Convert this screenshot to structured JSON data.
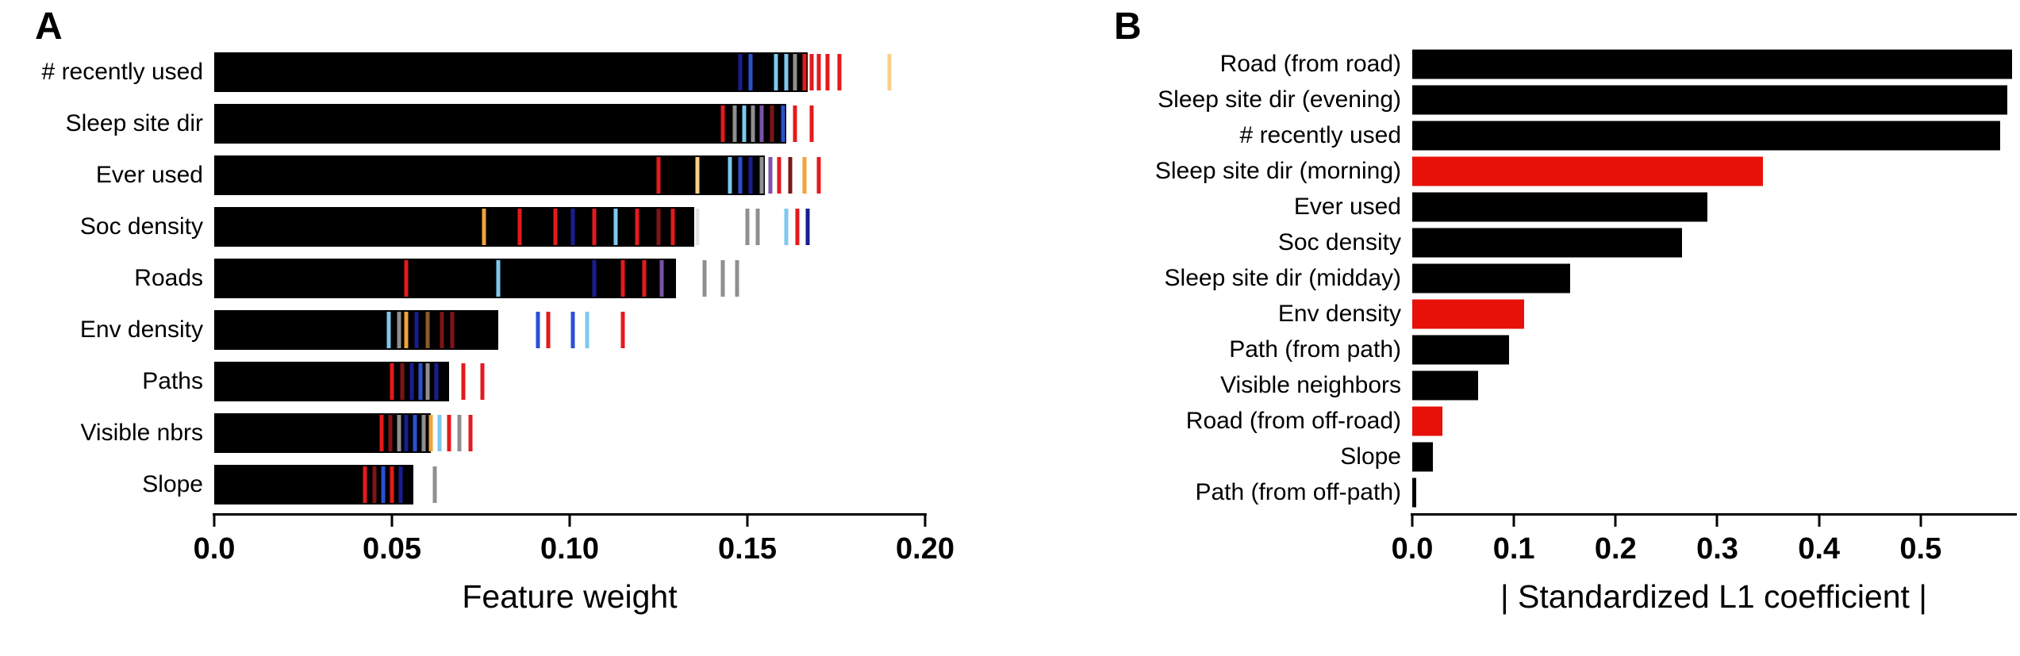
{
  "figure": {
    "background": "#ffffff"
  },
  "palette": {
    "red": "#e41a1c",
    "darkred": "#7e1416",
    "navy": "#191d8f",
    "blue": "#2b50d0",
    "lightblue": "#7ec8ee",
    "orange": "#f2a33c",
    "lightorange": "#f9d08b",
    "gray": "#8f8f8f",
    "purple": "#7a52a8",
    "brown": "#8a5a2a",
    "white": "#e3e3e3"
  },
  "chart_data": [
    {
      "panel_label": "A",
      "type": "bar",
      "orientation": "horizontal",
      "title": "",
      "xlabel": "Feature weight",
      "ylabel": "",
      "xlim": [
        0,
        0.2
      ],
      "xticks": [
        "0.0",
        "0.05",
        "0.10",
        "0.15",
        "0.20"
      ],
      "xtick_values": [
        0,
        0.05,
        0.1,
        0.15,
        0.2
      ],
      "grid": false,
      "legend": false,
      "bar_color": "#000000",
      "categories": [
        "# recently used",
        "Sleep site dir",
        "Ever used",
        "Soc density",
        "Roads",
        "Env density",
        "Paths",
        "Visible nbrs",
        "Slope"
      ],
      "values": [
        0.167,
        0.161,
        0.155,
        0.135,
        0.13,
        0.08,
        0.066,
        0.061,
        0.056
      ],
      "markers": [
        [
          {
            "x": 0.148,
            "c": "navy"
          },
          {
            "x": 0.151,
            "c": "blue"
          },
          {
            "x": 0.158,
            "c": "lightblue"
          },
          {
            "x": 0.161,
            "c": "lightblue"
          },
          {
            "x": 0.1635,
            "c": "gray"
          },
          {
            "x": 0.166,
            "c": "red"
          },
          {
            "x": 0.168,
            "c": "red"
          },
          {
            "x": 0.17,
            "c": "red"
          },
          {
            "x": 0.1725,
            "c": "red"
          },
          {
            "x": 0.176,
            "c": "red"
          },
          {
            "x": 0.19,
            "c": "lightorange"
          }
        ],
        [
          {
            "x": 0.143,
            "c": "red"
          },
          {
            "x": 0.1465,
            "c": "gray"
          },
          {
            "x": 0.149,
            "c": "lightblue"
          },
          {
            "x": 0.1515,
            "c": "gray"
          },
          {
            "x": 0.154,
            "c": "purple"
          },
          {
            "x": 0.157,
            "c": "darkred"
          },
          {
            "x": 0.16,
            "c": "blue"
          },
          {
            "x": 0.1635,
            "c": "red"
          },
          {
            "x": 0.168,
            "c": "red"
          }
        ],
        [
          {
            "x": 0.125,
            "c": "red"
          },
          {
            "x": 0.136,
            "c": "lightorange"
          },
          {
            "x": 0.145,
            "c": "lightblue"
          },
          {
            "x": 0.148,
            "c": "blue"
          },
          {
            "x": 0.151,
            "c": "navy"
          },
          {
            "x": 0.154,
            "c": "gray"
          },
          {
            "x": 0.1565,
            "c": "purple"
          },
          {
            "x": 0.159,
            "c": "red"
          },
          {
            "x": 0.162,
            "c": "darkred"
          },
          {
            "x": 0.166,
            "c": "orange"
          },
          {
            "x": 0.17,
            "c": "red"
          }
        ],
        [
          {
            "x": 0.076,
            "c": "orange"
          },
          {
            "x": 0.086,
            "c": "red"
          },
          {
            "x": 0.096,
            "c": "red"
          },
          {
            "x": 0.101,
            "c": "navy"
          },
          {
            "x": 0.107,
            "c": "red"
          },
          {
            "x": 0.113,
            "c": "lightblue"
          },
          {
            "x": 0.119,
            "c": "red"
          },
          {
            "x": 0.125,
            "c": "darkred"
          },
          {
            "x": 0.129,
            "c": "red"
          },
          {
            "x": 0.136,
            "c": "white"
          },
          {
            "x": 0.15,
            "c": "gray"
          },
          {
            "x": 0.153,
            "c": "gray"
          },
          {
            "x": 0.161,
            "c": "lightblue"
          },
          {
            "x": 0.164,
            "c": "red"
          },
          {
            "x": 0.167,
            "c": "navy"
          }
        ],
        [
          {
            "x": 0.054,
            "c": "red"
          },
          {
            "x": 0.08,
            "c": "lightblue"
          },
          {
            "x": 0.107,
            "c": "navy"
          },
          {
            "x": 0.115,
            "c": "red"
          },
          {
            "x": 0.121,
            "c": "red"
          },
          {
            "x": 0.126,
            "c": "purple"
          },
          {
            "x": 0.138,
            "c": "gray"
          },
          {
            "x": 0.143,
            "c": "gray"
          },
          {
            "x": 0.147,
            "c": "gray"
          }
        ],
        [
          {
            "x": 0.049,
            "c": "lightblue"
          },
          {
            "x": 0.052,
            "c": "gray"
          },
          {
            "x": 0.054,
            "c": "orange"
          },
          {
            "x": 0.057,
            "c": "navy"
          },
          {
            "x": 0.06,
            "c": "brown"
          },
          {
            "x": 0.064,
            "c": "darkred"
          },
          {
            "x": 0.067,
            "c": "darkred"
          },
          {
            "x": 0.091,
            "c": "blue"
          },
          {
            "x": 0.094,
            "c": "red"
          },
          {
            "x": 0.101,
            "c": "blue"
          },
          {
            "x": 0.105,
            "c": "lightblue"
          },
          {
            "x": 0.115,
            "c": "red"
          }
        ],
        [
          {
            "x": 0.05,
            "c": "red"
          },
          {
            "x": 0.053,
            "c": "darkred"
          },
          {
            "x": 0.0555,
            "c": "navy"
          },
          {
            "x": 0.058,
            "c": "blue"
          },
          {
            "x": 0.06,
            "c": "gray"
          },
          {
            "x": 0.0625,
            "c": "navy"
          },
          {
            "x": 0.07,
            "c": "red"
          },
          {
            "x": 0.0755,
            "c": "red"
          }
        ],
        [
          {
            "x": 0.047,
            "c": "red"
          },
          {
            "x": 0.0495,
            "c": "darkred"
          },
          {
            "x": 0.052,
            "c": "gray"
          },
          {
            "x": 0.054,
            "c": "navy"
          },
          {
            "x": 0.0565,
            "c": "blue"
          },
          {
            "x": 0.059,
            "c": "gray"
          },
          {
            "x": 0.061,
            "c": "orange"
          },
          {
            "x": 0.0635,
            "c": "lightblue"
          },
          {
            "x": 0.066,
            "c": "red"
          },
          {
            "x": 0.069,
            "c": "gray"
          },
          {
            "x": 0.072,
            "c": "red"
          }
        ],
        [
          {
            "x": 0.0425,
            "c": "red"
          },
          {
            "x": 0.045,
            "c": "darkred"
          },
          {
            "x": 0.0475,
            "c": "blue"
          },
          {
            "x": 0.05,
            "c": "red"
          },
          {
            "x": 0.0525,
            "c": "navy"
          },
          {
            "x": 0.062,
            "c": "gray"
          }
        ]
      ]
    },
    {
      "panel_label": "B",
      "type": "bar",
      "orientation": "horizontal",
      "title": "",
      "xlabel": "| Standardized L1 coefficient |",
      "ylabel": "",
      "xlim": [
        0,
        0.593
      ],
      "xticks": [
        "0.0",
        "0.1",
        "0.2",
        "0.3",
        "0.4",
        "0.5"
      ],
      "xtick_values": [
        0,
        0.1,
        0.2,
        0.3,
        0.4,
        0.5
      ],
      "grid": false,
      "legend": false,
      "bar_color": "#000000",
      "highlight_color": "#e8110a",
      "categories": [
        "Road (from road)",
        "Sleep site dir (evening)",
        "# recently used",
        "Sleep site dir (morning)",
        "Ever used",
        "Soc density",
        "Sleep site dir (midday)",
        "Env density",
        "Path (from path)",
        "Visible neighbors",
        "Road (from off-road)",
        "Slope",
        "Path (from off-path)"
      ],
      "values": [
        0.59,
        0.585,
        0.578,
        0.345,
        0.29,
        0.265,
        0.155,
        0.11,
        0.095,
        0.065,
        0.03,
        0.02,
        0.004
      ],
      "colors": [
        "#000000",
        "#000000",
        "#000000",
        "#e8110a",
        "#000000",
        "#000000",
        "#000000",
        "#e8110a",
        "#000000",
        "#000000",
        "#e8110a",
        "#000000",
        "#000000"
      ]
    }
  ]
}
